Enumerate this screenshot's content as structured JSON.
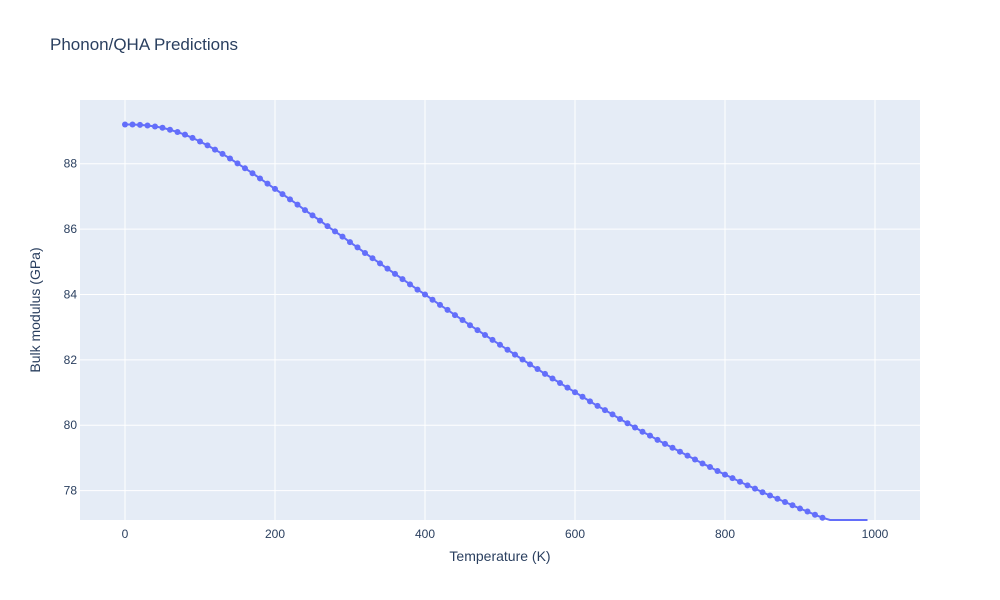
{
  "chart_data": {
    "type": "line",
    "title": "Phonon/QHA Predictions",
    "xlabel": "Temperature (K)",
    "ylabel": "Bulk modulus (GPa)",
    "xlim": [
      -60,
      1060
    ],
    "ylim": [
      77.1,
      89.95
    ],
    "x_ticks": [
      0,
      200,
      400,
      600,
      800,
      1000
    ],
    "y_ticks": [
      78,
      80,
      82,
      84,
      86,
      88
    ],
    "grid": true,
    "legend": "none",
    "colors": {
      "plot_bg": "#e5ecf6",
      "grid": "#ffffff",
      "series": "#636efa",
      "text": "#2a3f5f"
    },
    "series": [
      {
        "mode": "lines+markers",
        "x": [
          0,
          10,
          20,
          30,
          40,
          50,
          60,
          70,
          80,
          90,
          100,
          110,
          120,
          130,
          140,
          150,
          160,
          170,
          180,
          190,
          200,
          210,
          220,
          230,
          240,
          250,
          260,
          270,
          280,
          290,
          300,
          310,
          320,
          330,
          340,
          350,
          360,
          370,
          380,
          390,
          400,
          410,
          420,
          430,
          440,
          450,
          460,
          470,
          480,
          490,
          500,
          510,
          520,
          530,
          540,
          550,
          560,
          570,
          580,
          590,
          600,
          610,
          620,
          630,
          640,
          650,
          660,
          670,
          680,
          690,
          700,
          710,
          720,
          730,
          740,
          750,
          760,
          770,
          780,
          790,
          800,
          810,
          820,
          830,
          840,
          850,
          860,
          870,
          880,
          890,
          900,
          910,
          920,
          930,
          940,
          950,
          960,
          970,
          980,
          990
        ],
        "y": [
          89.2,
          89.2,
          89.19,
          89.17,
          89.14,
          89.1,
          89.04,
          88.97,
          88.89,
          88.79,
          88.68,
          88.56,
          88.43,
          88.3,
          88.16,
          88.01,
          87.86,
          87.71,
          87.55,
          87.39,
          87.23,
          87.07,
          86.91,
          86.75,
          86.58,
          86.42,
          86.26,
          86.09,
          85.93,
          85.77,
          85.6,
          85.44,
          85.27,
          85.11,
          84.95,
          84.79,
          84.63,
          84.47,
          84.31,
          84.15,
          84,
          83.84,
          83.68,
          83.53,
          83.37,
          83.22,
          83.06,
          82.91,
          82.76,
          82.61,
          82.46,
          82.31,
          82.16,
          82.01,
          81.86,
          81.72,
          81.57,
          81.43,
          81.29,
          81.15,
          81.01,
          80.87,
          80.73,
          80.59,
          80.46,
          80.33,
          80.19,
          80.06,
          79.93,
          79.8,
          79.68,
          79.55,
          79.43,
          79.31,
          79.19,
          79.07,
          78.95,
          78.83,
          78.72,
          78.6,
          78.49,
          78.38,
          78.27,
          78.16,
          78.06,
          77.95,
          77.85,
          77.75,
          77.65,
          77.55,
          77.45,
          77.36,
          77.26,
          77.17,
          77.08,
          76.99,
          76.9,
          76.81,
          76.73,
          76.64
        ]
      }
    ]
  }
}
